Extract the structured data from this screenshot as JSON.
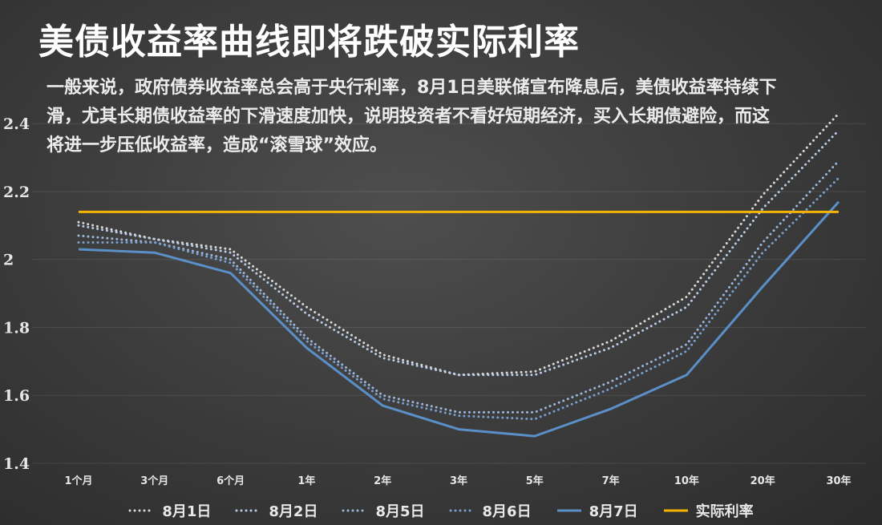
{
  "title": "美债收益率曲线即将跌破实际利率",
  "subtitle": "一般来说，政府债券收益率总会高于央行利率，8月1日美联储宣布降息后，美债收益率持续下滑，尤其长期债收益率的下滑速度加快，说明投资者不看好短期经济，买入长期债避险，而这将进一步压低收益率，造成“滚雪球”效应。",
  "colors": {
    "series1": "#d9d9d9",
    "series2": "#b9cde6",
    "series3": "#9cb7dc",
    "series4": "#7aa0cf",
    "series5": "#5b8fc7",
    "real_rate": "#f5b400"
  },
  "chart_data": {
    "type": "line",
    "categories": [
      "1个月",
      "3个月",
      "6个月",
      "1年",
      "2年",
      "3年",
      "5年",
      "7年",
      "10年",
      "20年",
      "30年"
    ],
    "ylim": [
      1.4,
      2.45
    ],
    "yticks": [
      "1.4",
      "1.6",
      "1.8",
      "2",
      "2.2",
      "2.4"
    ],
    "series": [
      {
        "name": "8月1日",
        "style": "dotted",
        "color": "#d9d9d9",
        "values": [
          2.11,
          2.06,
          2.03,
          1.86,
          1.72,
          1.66,
          1.67,
          1.76,
          1.89,
          2.19,
          2.43
        ]
      },
      {
        "name": "8月2日",
        "style": "dotted",
        "color": "#b9cde6",
        "values": [
          2.1,
          2.06,
          2.02,
          1.84,
          1.71,
          1.66,
          1.66,
          1.74,
          1.86,
          2.15,
          2.38
        ]
      },
      {
        "name": "8月5日",
        "style": "dotted",
        "color": "#9cb7dc",
        "values": [
          2.07,
          2.05,
          2.0,
          1.77,
          1.6,
          1.55,
          1.55,
          1.64,
          1.75,
          2.05,
          2.29
        ]
      },
      {
        "name": "8月6日",
        "style": "dotted",
        "color": "#7aa0cf",
        "values": [
          2.05,
          2.05,
          1.99,
          1.76,
          1.59,
          1.54,
          1.53,
          1.62,
          1.73,
          2.02,
          2.24
        ]
      },
      {
        "name": "8月7日",
        "style": "solid",
        "color": "#5b8fc7",
        "values": [
          2.03,
          2.02,
          1.96,
          1.74,
          1.57,
          1.5,
          1.48,
          1.56,
          1.66,
          1.92,
          2.17
        ]
      },
      {
        "name": "实际利率",
        "style": "solid",
        "color": "#f5b400",
        "values": [
          2.14,
          2.14,
          2.14,
          2.14,
          2.14,
          2.14,
          2.14,
          2.14,
          2.14,
          2.14,
          2.14
        ]
      }
    ]
  }
}
